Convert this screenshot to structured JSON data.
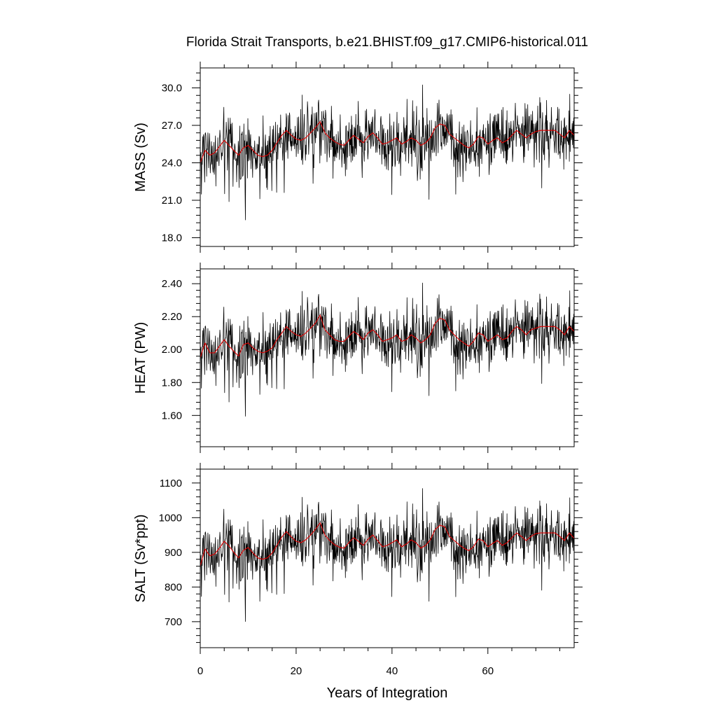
{
  "figure": {
    "title": "Florida Strait Transports, b.e21.BHIST.f09_g17.CMIP6-historical.011",
    "xlabel": "Years of Integration"
  },
  "colors": {
    "raw": "#000000",
    "smooth": "#e00000",
    "frame": "#000000"
  },
  "chart_data": [
    {
      "type": "line",
      "panel": "mass",
      "ylabel": "MASS (Sv)",
      "xlim": [
        0,
        78
      ],
      "ylim": [
        17.3,
        31.6
      ],
      "xticks": [
        0,
        20,
        40,
        60
      ],
      "xtick_labels": [
        "0",
        "20",
        "40",
        "60"
      ],
      "yticks": [
        18,
        21,
        24,
        27,
        30
      ],
      "ytick_labels": [
        "18.0",
        "21.0",
        "24.0",
        "27.0",
        "30.0"
      ],
      "seed": 1201,
      "series": [
        {
          "role": "monthly",
          "color": "#000000",
          "n": 936,
          "amplitude": 1.2,
          "spike_rate": 0.03,
          "spike_size": 3.2
        },
        {
          "role": "smoothed",
          "color": "#e00000",
          "x": [
            0,
            1,
            2,
            3,
            4,
            5,
            6,
            7,
            8,
            9,
            10,
            11,
            12,
            13,
            14,
            15,
            16,
            17,
            18,
            19,
            20,
            21,
            22,
            23,
            24,
            25,
            26,
            27,
            28,
            29,
            30,
            31,
            32,
            33,
            34,
            35,
            36,
            37,
            38,
            39,
            40,
            41,
            42,
            43,
            44,
            45,
            46,
            47,
            48,
            49,
            50,
            51,
            52,
            53,
            54,
            55,
            56,
            57,
            58,
            59,
            60,
            61,
            62,
            63,
            64,
            65,
            66,
            67,
            68,
            69,
            70,
            71,
            72,
            73,
            74,
            75,
            76,
            77,
            78
          ],
          "y": [
            24.0,
            25.0,
            24.6,
            24.8,
            25.3,
            25.8,
            25.4,
            25.0,
            24.6,
            25.2,
            25.4,
            25.0,
            24.6,
            24.5,
            24.6,
            25.0,
            25.6,
            26.2,
            26.6,
            26.2,
            25.9,
            25.8,
            26.0,
            26.4,
            26.8,
            27.3,
            26.4,
            26.0,
            25.7,
            25.5,
            25.4,
            25.8,
            26.2,
            25.9,
            25.6,
            26.1,
            26.4,
            26.0,
            25.5,
            25.6,
            25.8,
            26.0,
            25.5,
            25.7,
            26.0,
            25.8,
            25.4,
            25.6,
            26.0,
            26.8,
            27.1,
            27.0,
            26.3,
            26.0,
            25.7,
            25.4,
            25.2,
            25.5,
            26.1,
            26.0,
            25.5,
            25.8,
            26.0,
            25.6,
            25.8,
            26.2,
            26.6,
            26.3,
            26.0,
            26.3,
            26.5,
            26.6,
            26.6,
            26.6,
            26.6,
            26.3,
            26.0,
            26.6,
            26.2
          ]
        }
      ]
    },
    {
      "type": "line",
      "panel": "heat",
      "ylabel": "HEAT (PW)",
      "xlim": [
        0,
        78
      ],
      "ylim": [
        1.41,
        2.49
      ],
      "xticks": [
        0,
        20,
        40,
        60
      ],
      "xtick_labels": [
        "0",
        "20",
        "40",
        "60"
      ],
      "yticks": [
        1.6,
        1.8,
        2.0,
        2.2,
        2.4
      ],
      "ytick_labels": [
        "1.60",
        "1.80",
        "2.00",
        "2.20",
        "2.40"
      ],
      "seed": 1201,
      "series": [
        {
          "role": "monthly",
          "color": "#000000",
          "n": 936,
          "amplitude": 0.09,
          "spike_rate": 0.03,
          "spike_size": 0.24
        },
        {
          "role": "smoothed",
          "color": "#e00000",
          "x": [
            0,
            1,
            2,
            3,
            4,
            5,
            6,
            7,
            8,
            9,
            10,
            11,
            12,
            13,
            14,
            15,
            16,
            17,
            18,
            19,
            20,
            21,
            22,
            23,
            24,
            25,
            26,
            27,
            28,
            29,
            30,
            31,
            32,
            33,
            34,
            35,
            36,
            37,
            38,
            39,
            40,
            41,
            42,
            43,
            44,
            45,
            46,
            47,
            48,
            49,
            50,
            51,
            52,
            53,
            54,
            55,
            56,
            57,
            58,
            59,
            60,
            61,
            62,
            63,
            64,
            65,
            66,
            67,
            68,
            69,
            70,
            71,
            72,
            73,
            74,
            75,
            76,
            77,
            78
          ],
          "y": [
            1.95,
            2.04,
            1.98,
            1.98,
            2.02,
            2.06,
            2.02,
            1.99,
            1.96,
            2.03,
            2.04,
            2.01,
            1.99,
            1.98,
            1.99,
            2.01,
            2.06,
            2.1,
            2.14,
            2.11,
            2.09,
            2.08,
            2.1,
            2.13,
            2.16,
            2.21,
            2.12,
            2.09,
            2.06,
            2.05,
            2.05,
            2.08,
            2.11,
            2.09,
            2.06,
            2.1,
            2.12,
            2.09,
            2.05,
            2.06,
            2.07,
            2.09,
            2.05,
            2.06,
            2.09,
            2.07,
            2.04,
            2.06,
            2.09,
            2.16,
            2.19,
            2.18,
            2.12,
            2.09,
            2.06,
            2.04,
            2.02,
            2.05,
            2.1,
            2.09,
            2.05,
            2.07,
            2.09,
            2.06,
            2.07,
            2.11,
            2.14,
            2.12,
            2.09,
            2.12,
            2.13,
            2.14,
            2.14,
            2.14,
            2.14,
            2.12,
            2.09,
            2.14,
            2.11
          ]
        }
      ]
    },
    {
      "type": "line",
      "panel": "salt",
      "ylabel": "SALT (Sv*ppt)",
      "xlim": [
        0,
        78
      ],
      "ylim": [
        625,
        1140
      ],
      "xticks": [
        0,
        20,
        40,
        60
      ],
      "xtick_labels": [
        "0",
        "20",
        "40",
        "60"
      ],
      "yticks": [
        700,
        800,
        900,
        1000,
        1100
      ],
      "ytick_labels": [
        "700",
        "800",
        "900",
        "1000",
        "1100"
      ],
      "seed": 1201,
      "series": [
        {
          "role": "monthly",
          "color": "#000000",
          "n": 936,
          "amplitude": 42,
          "spike_rate": 0.03,
          "spike_size": 115
        },
        {
          "role": "smoothed",
          "color": "#e00000",
          "x": [
            0,
            1,
            2,
            3,
            4,
            5,
            6,
            7,
            8,
            9,
            10,
            11,
            12,
            13,
            14,
            15,
            16,
            17,
            18,
            19,
            20,
            21,
            22,
            23,
            24,
            25,
            26,
            27,
            28,
            29,
            30,
            31,
            32,
            33,
            34,
            35,
            36,
            37,
            38,
            39,
            40,
            41,
            42,
            43,
            44,
            45,
            46,
            47,
            48,
            49,
            50,
            51,
            52,
            53,
            54,
            55,
            56,
            57,
            58,
            59,
            60,
            61,
            62,
            63,
            64,
            65,
            66,
            67,
            68,
            69,
            70,
            71,
            72,
            73,
            74,
            75,
            76,
            77,
            78
          ],
          "y": [
            860,
            910,
            890,
            895,
            912,
            932,
            918,
            900,
            884,
            906,
            914,
            898,
            884,
            880,
            884,
            898,
            920,
            944,
            960,
            944,
            932,
            928,
            936,
            950,
            966,
            985,
            950,
            934,
            922,
            915,
            912,
            928,
            942,
            932,
            920,
            938,
            950,
            934,
            916,
            920,
            928,
            936,
            916,
            924,
            936,
            928,
            912,
            920,
            936,
            966,
            978,
            974,
            946,
            934,
            922,
            912,
            905,
            916,
            938,
            934,
            916,
            926,
            934,
            920,
            928,
            942,
            956,
            946,
            934,
            946,
            954,
            956,
            956,
            956,
            956,
            946,
            934,
            956,
            940
          ]
        }
      ]
    }
  ]
}
